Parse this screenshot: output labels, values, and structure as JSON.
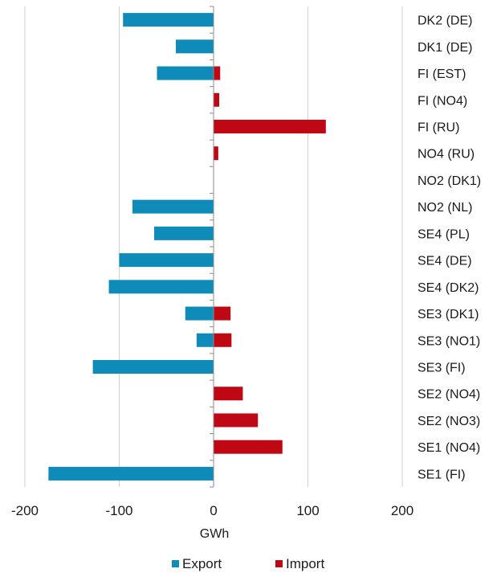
{
  "chart_data": {
    "type": "bar",
    "orientation": "horizontal",
    "title": "",
    "xlabel": "GWh",
    "ylabel": "",
    "xlim": [
      -200,
      200
    ],
    "xticks": [
      -200,
      -100,
      0,
      100,
      200
    ],
    "grid": "vertical",
    "legend_position": "bottom",
    "categories": [
      "DK2 (DE)",
      "DK1 (DE)",
      "FI (EST)",
      "FI (NO4)",
      "FI (RU)",
      "NO4 (RU)",
      "NO2 (DK1)",
      "NO2 (NL)",
      "SE4 (PL)",
      "SE4 (DE)",
      "SE4 (DK2)",
      "SE3 (DK1)",
      "SE3 (NO1)",
      "SE3 (FI)",
      "SE2 (NO4)",
      "SE2 (NO3)",
      "SE1 (NO4)",
      "SE1 (FI)"
    ],
    "series": [
      {
        "name": "Export",
        "color": "#0e8bb8",
        "values": [
          -96,
          -40,
          -60,
          0,
          0,
          0,
          0,
          -86,
          -63,
          -100,
          -111,
          -30,
          -18,
          -128,
          0,
          0,
          0,
          -175
        ]
      },
      {
        "name": "Import",
        "color": "#c00814",
        "values": [
          0,
          0,
          7,
          6,
          119,
          5,
          0,
          0,
          0,
          0,
          0,
          18,
          19,
          0,
          31,
          47,
          73,
          0
        ]
      }
    ]
  }
}
